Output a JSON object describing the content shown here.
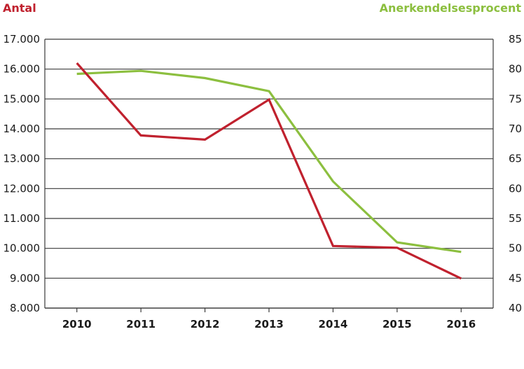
{
  "chart_data": {
    "type": "line",
    "categories": [
      "2010",
      "2011",
      "2012",
      "2013",
      "2014",
      "2015",
      "2016"
    ],
    "series": [
      {
        "name": "Antal",
        "axis": "left",
        "color": "#c0212e",
        "values": [
          16200,
          13780,
          13640,
          14980,
          10080,
          10020,
          8990
        ]
      },
      {
        "name": "Anerkendelsesprocent",
        "axis": "right",
        "color": "#8cbf3f",
        "values": [
          79.2,
          79.7,
          78.5,
          76.3,
          61.2,
          51.0,
          49.4
        ]
      }
    ],
    "left_axis": {
      "label": "Antal",
      "ylim": [
        8000,
        17000
      ],
      "ticks": [
        8000,
        9000,
        10000,
        11000,
        12000,
        13000,
        14000,
        15000,
        16000,
        17000
      ],
      "tick_labels": [
        "8.000",
        "9.000",
        "10.000",
        "11.000",
        "12.000",
        "13.000",
        "14.000",
        "15.000",
        "16.000",
        "17.000"
      ]
    },
    "right_axis": {
      "label": "Anerkendelsesprocent",
      "ylim": [
        40,
        85
      ],
      "ticks": [
        40,
        45,
        50,
        55,
        60,
        65,
        70,
        75,
        80,
        85
      ],
      "tick_labels": [
        "40",
        "45",
        "50",
        "55",
        "60",
        "65",
        "70",
        "75",
        "80",
        "85"
      ]
    },
    "grid": true
  }
}
